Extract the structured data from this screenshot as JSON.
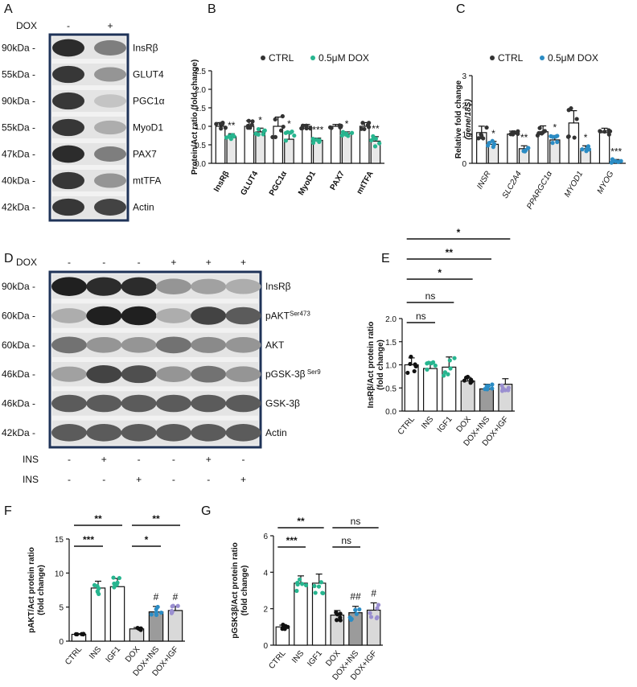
{
  "colors": {
    "teal": "#27b58f",
    "blue": "#2b8cc4",
    "lavender": "#9a8fd0",
    "dark": "#333333",
    "grey": "#bbbbbb",
    "black": "#111111",
    "blot_border": "#1f3358"
  },
  "panels": {
    "A": {
      "letter": "A",
      "dox_label": "DOX",
      "dox_signs": [
        "-",
        "+"
      ],
      "ladder": [
        "90kDa -",
        "55kDa -",
        "90kDa -",
        "55kDa -",
        "47kDa -",
        "40kDa -",
        "42kDa -"
      ],
      "proteins": [
        "InsRβ",
        "GLUT4",
        "PGC1α",
        "MyoD1",
        "PAX7",
        "mtTFA",
        "Actin"
      ],
      "intensity": [
        [
          0.9,
          0.55
        ],
        [
          0.85,
          0.45
        ],
        [
          0.85,
          0.25
        ],
        [
          0.85,
          0.35
        ],
        [
          0.9,
          0.55
        ],
        [
          0.85,
          0.45
        ],
        [
          0.85,
          0.8
        ]
      ]
    },
    "D": {
      "letter": "D",
      "dox_label": "DOX",
      "dox_signs": [
        "-",
        "-",
        "-",
        "+",
        "+",
        "+"
      ],
      "ladder": [
        "90kDa -",
        "60kDa -",
        "60kDa -",
        "46kDa -",
        "46kDa -",
        "42kDa -"
      ],
      "proteins": [
        "InsRβ",
        "pAKT",
        "AKT",
        "pGSK-3β",
        "GSK-3β",
        "Actin"
      ],
      "sups": [
        "",
        "Ser473",
        "",
        " Ser9",
        "",
        ""
      ],
      "ins_label": "INS",
      "ins_signs": [
        "-",
        "+",
        "-",
        "-",
        "+",
        "-"
      ],
      "igf_label": "INS",
      "igf_signs": [
        "-",
        "-",
        "+",
        "-",
        "-",
        "+"
      ],
      "intensity": [
        [
          0.95,
          0.9,
          0.9,
          0.45,
          0.4,
          0.35
        ],
        [
          0.35,
          0.95,
          0.95,
          0.35,
          0.8,
          0.7
        ],
        [
          0.6,
          0.45,
          0.45,
          0.6,
          0.5,
          0.45
        ],
        [
          0.4,
          0.8,
          0.75,
          0.45,
          0.6,
          0.45
        ],
        [
          0.7,
          0.7,
          0.7,
          0.7,
          0.7,
          0.7
        ],
        [
          0.7,
          0.7,
          0.7,
          0.7,
          0.7,
          0.7
        ]
      ]
    }
  },
  "chart_data": [
    {
      "panel": "B",
      "type": "bar",
      "ylabel": "Protein/Act ratio (fold change)",
      "ylim": [
        0,
        2.5
      ],
      "yticks": [
        "0.0",
        "0.5",
        "1.0",
        "1.5",
        "2.0",
        "2.5"
      ],
      "categories": [
        "InsRβ",
        "GLUT4",
        "PGC1α",
        "MyoD1",
        "PAX7",
        "mtTFA"
      ],
      "legend": [
        "CTRL",
        "0.5μM DOX"
      ],
      "series": [
        {
          "name": "CTRL",
          "values": [
            1.0,
            1.0,
            1.0,
            1.0,
            1.0,
            1.0
          ],
          "errors": [
            0.1,
            0.15,
            0.25,
            0.05,
            0.05,
            0.1
          ]
        },
        {
          "name": "0.5μM DOX",
          "values": [
            0.72,
            0.85,
            0.65,
            0.62,
            0.8,
            0.6
          ],
          "errors": [
            0.08,
            0.1,
            0.2,
            0.06,
            0.05,
            0.12
          ]
        }
      ],
      "significance": [
        "**",
        "*",
        "*",
        "***",
        "*",
        "**"
      ]
    },
    {
      "panel": "C",
      "type": "bar",
      "ylabel": "Relative fold change",
      "ylabel2": "(gene/18S)",
      "ylim": [
        0,
        3
      ],
      "yticks": [
        "0",
        "1",
        "2",
        "3"
      ],
      "categories": [
        "INSR",
        "SLC2A4",
        "PPARGC1α",
        "MYOD1",
        "MYOG"
      ],
      "legend": [
        "CTRL",
        "0.5μM DOX"
      ],
      "series": [
        {
          "name": "CTRL",
          "values": [
            1.05,
            1.0,
            1.08,
            1.38,
            1.05
          ],
          "errors": [
            0.22,
            0.1,
            0.2,
            0.42,
            0.15
          ]
        },
        {
          "name": "0.5μM DOX",
          "values": [
            0.65,
            0.5,
            0.8,
            0.5,
            0.08
          ],
          "errors": [
            0.1,
            0.1,
            0.15,
            0.1,
            0.05
          ]
        }
      ],
      "significance": [
        "*",
        "**",
        "*",
        "*",
        "***"
      ]
    },
    {
      "panel": "E",
      "type": "bar",
      "ylabel": "InsRβ/Act protein ratio",
      "ylabel2": "(fold change)",
      "ylim": [
        0,
        2.0
      ],
      "yticks": [
        "0.0",
        "0.5",
        "1.0",
        "1.5",
        "2.0"
      ],
      "categories": [
        "CTRL",
        "INS",
        "IGF1",
        "DOX",
        "DOX+INS",
        "DOX+IGF"
      ],
      "values": [
        1.0,
        0.92,
        0.95,
        0.65,
        0.48,
        0.58
      ],
      "errors": [
        0.15,
        0.13,
        0.22,
        0.08,
        0.1,
        0.12
      ],
      "brackets": [
        {
          "label": "ns",
          "to": "INS"
        },
        {
          "label": "ns",
          "to": "IGF1"
        },
        {
          "label": "*",
          "to": "DOX"
        },
        {
          "label": "**",
          "to": "DOX+INS"
        },
        {
          "label": "*",
          "to": "DOX+IGF"
        }
      ]
    },
    {
      "panel": "F",
      "type": "bar",
      "ylabel": "pAKT/Act protein ratio",
      "ylabel2": "(fold change)",
      "ylim": [
        0,
        15
      ],
      "yticks": [
        "0",
        "5",
        "10",
        "15"
      ],
      "categories": [
        "CTRL",
        "INS",
        "IGF1",
        "DOX",
        "DOX+INS",
        "DOX+IGF"
      ],
      "values": [
        1.0,
        7.8,
        8.0,
        1.8,
        4.3,
        4.5
      ],
      "errors": [
        0.1,
        1.0,
        1.2,
        0.2,
        0.8,
        0.6
      ],
      "brackets": [
        {
          "label": "***",
          "from": "CTRL",
          "to": "INS"
        },
        {
          "label": "**",
          "from": "CTRL",
          "to": "IGF1"
        },
        {
          "label": "*",
          "from": "DOX",
          "to": "DOX+INS"
        },
        {
          "label": "**",
          "from": "DOX",
          "to": "DOX+IGF"
        }
      ],
      "marks": [
        "",
        "",
        "",
        "",
        "#",
        "#"
      ]
    },
    {
      "panel": "G",
      "type": "bar",
      "ylabel": "pGSK3β/Act protein ratio",
      "ylabel2": "(fold change)",
      "ylim": [
        0,
        6
      ],
      "yticks": [
        "0",
        "2",
        "4",
        "6"
      ],
      "categories": [
        "CTRL",
        "INS",
        "IGF1",
        "DOX",
        "DOX+INS",
        "DOX+IGF"
      ],
      "values": [
        1.0,
        3.4,
        3.4,
        1.65,
        1.78,
        1.92
      ],
      "errors": [
        0.1,
        0.4,
        0.5,
        0.25,
        0.35,
        0.4
      ],
      "brackets": [
        {
          "label": "***",
          "from": "CTRL",
          "to": "INS"
        },
        {
          "label": "**",
          "from": "CTRL",
          "to": "IGF1"
        },
        {
          "label": "ns",
          "from": "DOX",
          "to": "DOX+INS"
        },
        {
          "label": "ns",
          "from": "DOX",
          "to": "DOX+IGF"
        }
      ],
      "marks": [
        "",
        "",
        "",
        "",
        "##",
        "#"
      ]
    }
  ]
}
